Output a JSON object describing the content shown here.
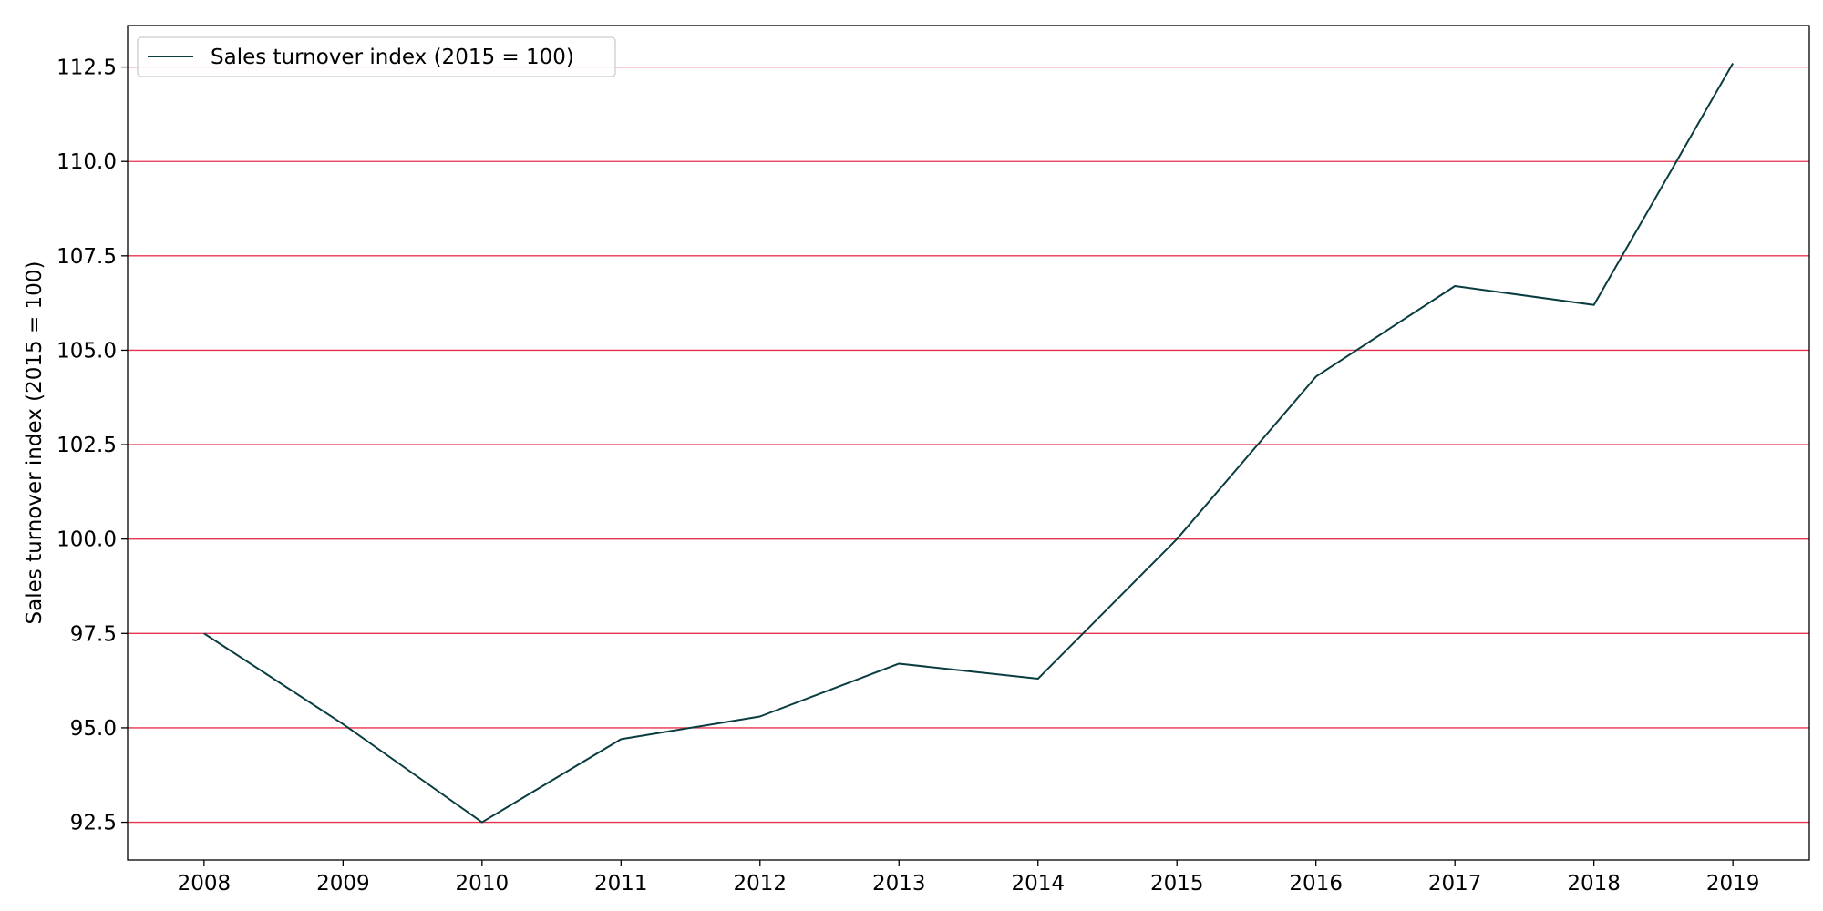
{
  "chart_data": {
    "type": "line",
    "title": "",
    "xlabel": "",
    "ylabel": "Sales turnover index (2015 = 100)",
    "x": [
      2008,
      2009,
      2010,
      2011,
      2012,
      2013,
      2014,
      2015,
      2016,
      2017,
      2018,
      2019
    ],
    "x_tick_labels": [
      "2008",
      "2009",
      "2010",
      "2011",
      "2012",
      "2013",
      "2014",
      "2015",
      "2016",
      "2017",
      "2018",
      "2019"
    ],
    "y_ticks": [
      92.5,
      95.0,
      97.5,
      100.0,
      102.5,
      105.0,
      107.5,
      110.0,
      112.5
    ],
    "y_tick_labels": [
      "92.5",
      "95.0",
      "97.5",
      "100.0",
      "102.5",
      "105.0",
      "107.5",
      "110.0",
      "112.5"
    ],
    "ylim": [
      91.5,
      113.6
    ],
    "xlim": [
      2007.45,
      2019.55
    ],
    "grid": "horizontal",
    "legend_position": "top-left",
    "series": [
      {
        "name": "Sales turnover index (2015 = 100)",
        "color": "#0a3d3f",
        "values": [
          97.5,
          95.1,
          92.5,
          94.7,
          95.3,
          96.7,
          96.3,
          100.0,
          104.3,
          106.7,
          106.2,
          112.6
        ]
      }
    ],
    "colors": {
      "grid": "#e8334f",
      "axes": "#000000",
      "background": "#ffffff"
    }
  }
}
